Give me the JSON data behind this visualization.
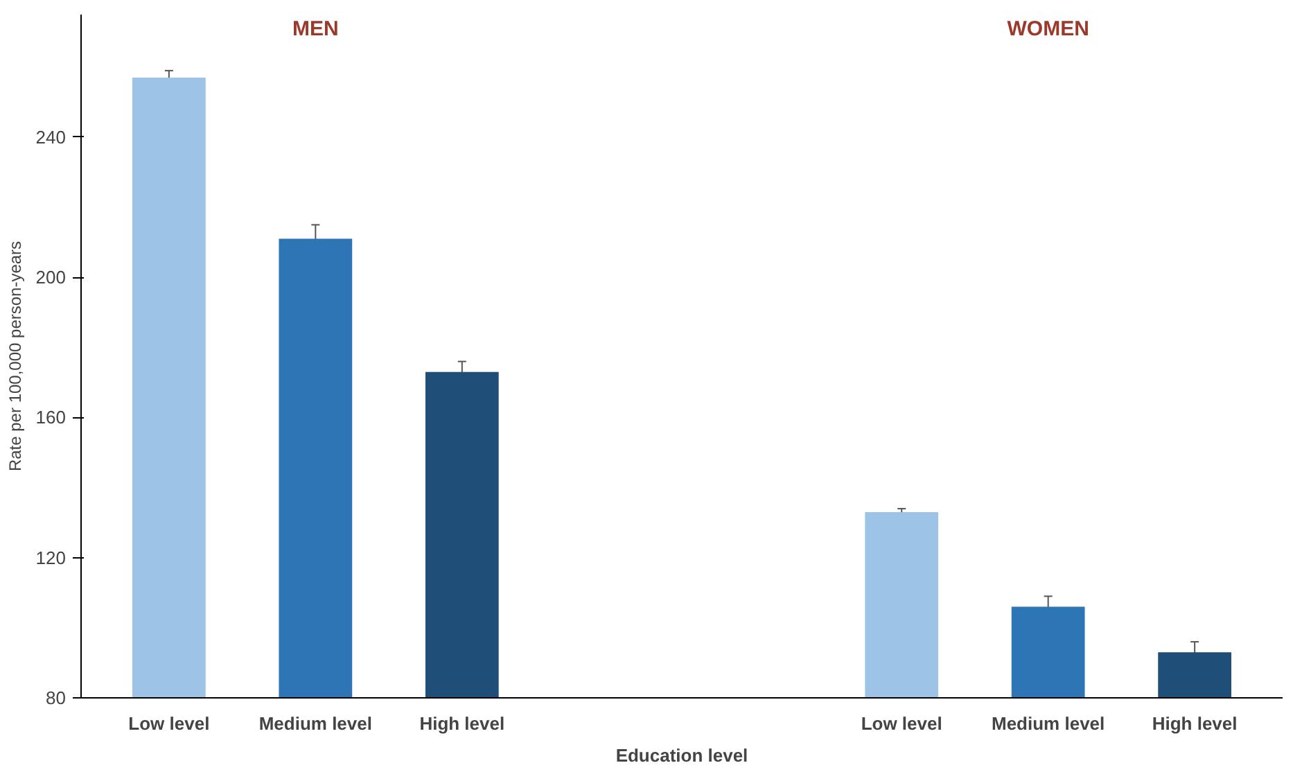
{
  "chart_data": {
    "type": "bar",
    "categories": [
      "Low level",
      "Medium level",
      "High level",
      null,
      null,
      "Low level",
      "Medium level",
      "High level"
    ],
    "values": [
      257,
      211,
      173,
      null,
      null,
      133,
      106,
      93
    ],
    "errors": [
      2,
      4,
      3,
      null,
      null,
      1,
      3,
      3
    ],
    "colors": [
      "#9dc3e6",
      "#2e75b6",
      "#1f4e79",
      "#9dc3e6",
      "#9dc3e6",
      "#9dc3e6",
      "#2e75b6",
      "#1f4e79"
    ],
    "xlabel": "Education level",
    "ylabel": "Rate per 100,000 person-years",
    "annotations": [
      "MEN",
      "WOMEN"
    ],
    "ylim": [
      80,
      275
    ],
    "yticks": [
      80,
      120,
      160,
      200,
      240
    ],
    "grid": false
  }
}
